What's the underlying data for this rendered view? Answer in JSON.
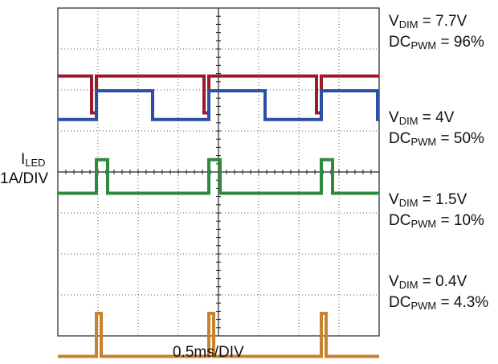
{
  "chart_data": {
    "type": "line",
    "xlabel": "0.5ms/DIV",
    "ylabel_main": "I",
    "ylabel_sub": "LED",
    "ylabel_scale": "1A/DIV",
    "x_divisions": 8,
    "y_divisions": 8,
    "grid": true,
    "series": [
      {
        "color": "#9b1b2a",
        "label_lines": [
          {
            "main": "V",
            "sub": "DIM",
            "rest": " = 7.7V"
          },
          {
            "main": "DC",
            "sub": "PWM",
            "rest": " = 96%"
          }
        ],
        "on_div": 0.34,
        "off_div": -0.56,
        "duty": 0.96,
        "baseline_div": 0.35
      },
      {
        "color": "#2d4fa3",
        "label_lines": [
          {
            "main": "V",
            "sub": "DIM",
            "rest": " = 4V"
          },
          {
            "main": "DC",
            "sub": "PWM",
            "rest": " = 50%"
          }
        ],
        "on_div": 1.98,
        "off_div": 1.28,
        "duty": 0.5,
        "baseline_div": 1.28
      },
      {
        "color": "#2e8b3e",
        "label_lines": [
          {
            "main": "V",
            "sub": "DIM",
            "rest": " = 1.5V"
          },
          {
            "main": "DC",
            "sub": "PWM",
            "rest": " = 10%"
          }
        ],
        "on_div": 2.3,
        "off_div": 1.48,
        "duty": 0.1
      },
      {
        "color": "#c9822e",
        "label_lines": [
          {
            "main": "V",
            "sub": "DIM",
            "rest": " = 0.4V"
          },
          {
            "main": "DC",
            "sub": "PWM",
            "rest": " = 4.3%"
          }
        ],
        "on_div": 0.55,
        "off_div": -0.5,
        "duty": 0.043
      }
    ],
    "period_div": 2.8,
    "first_edge_div": 0.95
  }
}
